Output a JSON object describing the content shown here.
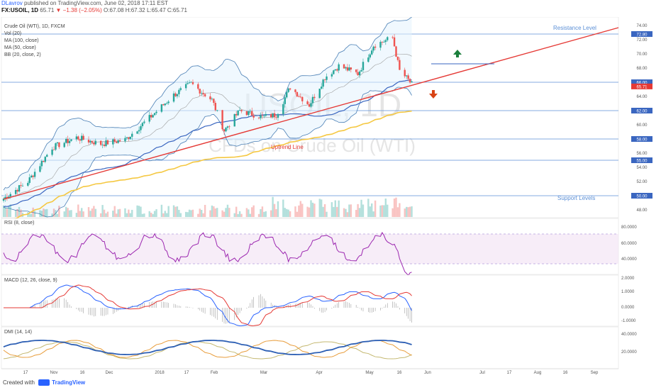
{
  "header": {
    "author": "DLavrov",
    "published": "published on TradingView.com, June 02, 2018 17:11 EST",
    "symbol": "FX:USOIL, 1D",
    "last": "65.71",
    "change": "▼ −1.38 (−2.05%)",
    "ohlc": "O:67.08 H:67.32 L:65.47 C:65.71"
  },
  "footer": {
    "created_with": "Created with",
    "brand": "TradingView"
  },
  "colors": {
    "up": "#26a69a",
    "down": "#ef5350",
    "ma100": "#f5c842",
    "ma50": "#3a66c0",
    "bb": "#4a7fb5",
    "trend": "#e53935",
    "hline": "#5b8fd6",
    "rsi": "#9c27b0",
    "macd": "#2962ff",
    "signal": "#e53935",
    "dmi_adx": "#2d5fb4",
    "dmi_plus": "#e89d3c",
    "dmi_minus": "#c4b870"
  },
  "main": {
    "legend": [
      "Crude Oil (WTI), 1D, FXCM",
      "Vol (20)",
      "MA (100, close)",
      "MA (50, close)",
      "BB (20, close, 2)"
    ],
    "watermark_1": "USOIL, 1D",
    "watermark_2": "CFDs on Crude Oil (WTI)",
    "annotations": {
      "resistance": "Resistance Level",
      "uptrend": "Uptrend Line",
      "support": "Support Levels"
    },
    "y_ticks": [
      "74.00",
      "72.00",
      "70.00",
      "68.00",
      "66.00",
      "64.00",
      "62.00",
      "60.00",
      "58.00",
      "56.00",
      "54.00",
      "52.00",
      "50.00",
      "48.00"
    ],
    "level_badges": [
      "72.80",
      "66.00",
      "62.00",
      "58.00",
      "55.00",
      "50.00"
    ],
    "price_badge": "65.71"
  },
  "rsi": {
    "label": "RSI (8, close)",
    "ticks": [
      "80.0000",
      "60.0000",
      "40.0000"
    ]
  },
  "macd": {
    "label": "MACD (12, 26, close, 9)",
    "ticks": [
      "2.0000",
      "1.0000",
      "0.0000",
      "-1.0000"
    ]
  },
  "dmi": {
    "label": "DMI (14, 14)",
    "ticks": [
      "40.0000",
      "20.0000"
    ]
  },
  "x_axis": [
    "17",
    "Nov",
    "16",
    "Dec",
    "2018",
    "17",
    "Feb",
    "Mar",
    "Apr",
    "May",
    "16",
    "Jun",
    "Jul",
    "17",
    "Aug",
    "16",
    "Sep"
  ],
  "chart_data": {
    "type": "candlestick",
    "symbol": "FX:USOIL",
    "interval": "1D",
    "ylim": [
      47,
      75
    ],
    "horizontal_levels": [
      72.8,
      66.0,
      62.0,
      58.0,
      55.0,
      50.0
    ],
    "uptrend_line": {
      "start": [
        "2017-10-09",
        49.5
      ],
      "end": [
        "2018-09-28",
        73.7
      ]
    },
    "last_close": 65.71,
    "anchors": [
      [
        "2017-10-09",
        49.6
      ],
      [
        "2017-10-23",
        52.0
      ],
      [
        "2017-11-06",
        56.8
      ],
      [
        "2017-11-20",
        58.2
      ],
      [
        "2017-12-04",
        57.3
      ],
      [
        "2017-12-18",
        57.9
      ],
      [
        "2018-01-02",
        61.2
      ],
      [
        "2018-01-15",
        64.2
      ],
      [
        "2018-01-25",
        65.8
      ],
      [
        "2018-02-06",
        63.5
      ],
      [
        "2018-02-13",
        59.2
      ],
      [
        "2018-02-22",
        62.0
      ],
      [
        "2018-03-07",
        61.1
      ],
      [
        "2018-03-15",
        61.4
      ],
      [
        "2018-03-23",
        65.3
      ],
      [
        "2018-04-03",
        62.8
      ],
      [
        "2018-04-12",
        66.7
      ],
      [
        "2018-04-20",
        68.3
      ],
      [
        "2018-05-01",
        67.2
      ],
      [
        "2018-05-10",
        71.2
      ],
      [
        "2018-05-21",
        72.3
      ],
      [
        "2018-05-25",
        67.6
      ],
      [
        "2018-05-29",
        66.6
      ],
      [
        "2018-06-01",
        65.71
      ]
    ]
  }
}
